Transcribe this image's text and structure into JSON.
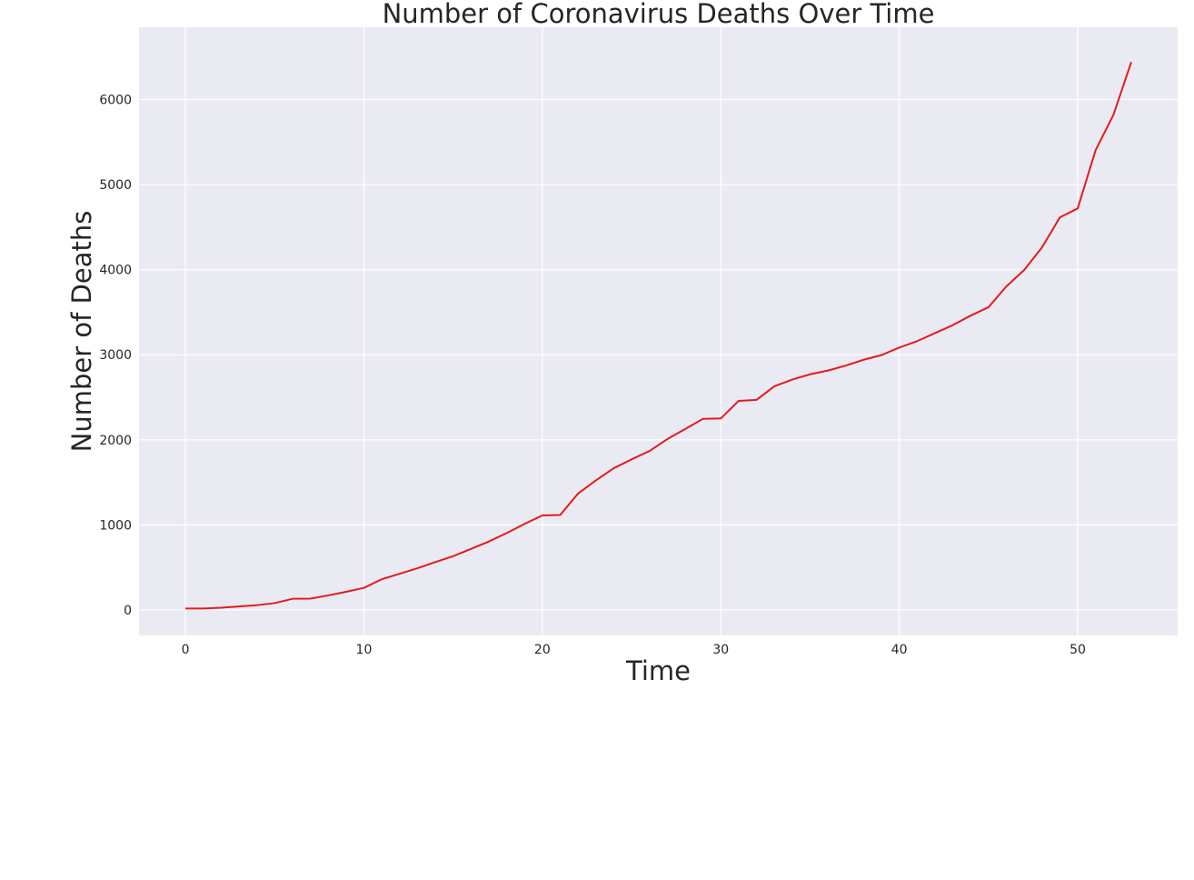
{
  "chart_data": {
    "type": "line",
    "title": "Number of Coronavirus Deaths Over Time",
    "xlabel": "Time",
    "ylabel": "Number of Deaths",
    "xlim": [
      -2.6,
      55.6
    ],
    "ylim": [
      -300,
      6850
    ],
    "xticks": [
      0,
      10,
      20,
      30,
      40,
      50
    ],
    "yticks": [
      0,
      1000,
      2000,
      3000,
      4000,
      5000,
      6000
    ],
    "grid": true,
    "background": "#eaeaf2",
    "series": [
      {
        "color": "#e41a1c",
        "x": [
          0,
          1,
          2,
          3,
          4,
          5,
          6,
          7,
          8,
          9,
          10,
          11,
          12,
          13,
          14,
          15,
          16,
          17,
          18,
          19,
          20,
          21,
          22,
          23,
          24,
          25,
          26,
          27,
          28,
          29,
          30,
          31,
          32,
          33,
          34,
          35,
          36,
          37,
          38,
          39,
          40,
          41,
          42,
          43,
          44,
          45,
          46,
          47,
          48,
          49,
          50,
          51,
          52,
          53
        ],
        "values": [
          17,
          17,
          26,
          41,
          56,
          80,
          131,
          133,
          171,
          213,
          259,
          361,
          425,
          490,
          562,
          632,
          717,
          804,
          904,
          1011,
          1111,
          1116,
          1368,
          1523,
          1666,
          1770,
          1868,
          2008,
          2126,
          2247,
          2251,
          2458,
          2469,
          2629,
          2708,
          2770,
          2814,
          2872,
          2941,
          2996,
          3085,
          3160,
          3254,
          3348,
          3460,
          3559,
          3803,
          3996,
          4262,
          4615,
          4720,
          5404,
          5819,
          6440
        ]
      }
    ]
  }
}
